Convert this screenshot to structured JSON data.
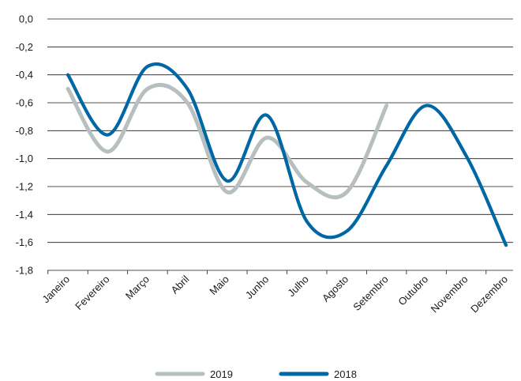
{
  "chart_data": {
    "type": "line",
    "title": "",
    "xlabel": "",
    "ylabel": "",
    "categories": [
      "Janeiro",
      "Fevereiro",
      "Março",
      "Abril",
      "Maio",
      "Junho",
      "Julho",
      "Agosto",
      "Setembro",
      "Outubro",
      "Novembro",
      "Dezembro"
    ],
    "ylim": [
      -1.8,
      0.0
    ],
    "yticks": [
      0.0,
      -0.2,
      -0.4,
      -0.6,
      -0.8,
      -1.0,
      -1.2,
      -1.4,
      -1.6,
      -1.8
    ],
    "ytick_labels": [
      "0,0",
      "-0,2",
      "-0,4",
      "-0,6",
      "-0,8",
      "-1,0",
      "-1,2",
      "-1,4",
      "-1,6",
      "-1,8"
    ],
    "grid": true,
    "legend_position": "bottom",
    "series": [
      {
        "name": "2019",
        "color": "#b8bfc0",
        "values": [
          -0.5,
          -0.95,
          -0.5,
          -0.6,
          -1.24,
          -0.85,
          -1.17,
          -1.24,
          -0.62,
          null,
          null,
          null
        ]
      },
      {
        "name": "2018",
        "color": "#0067a5",
        "values": [
          -0.4,
          -0.83,
          -0.34,
          -0.5,
          -1.16,
          -0.69,
          -1.45,
          -1.52,
          -1.05,
          -0.62,
          -0.98,
          -1.62
        ]
      }
    ]
  }
}
